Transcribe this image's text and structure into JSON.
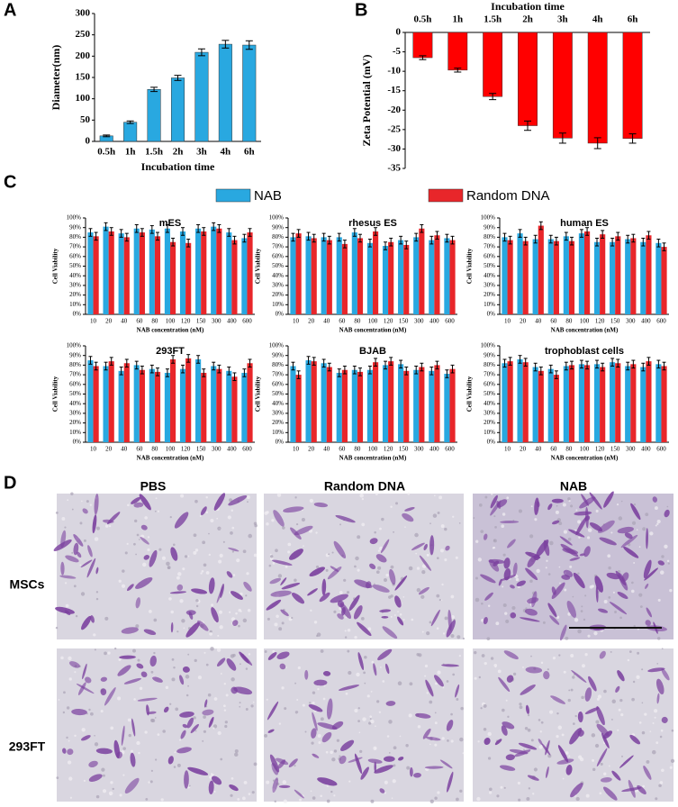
{
  "panel_labels": [
    "A",
    "B",
    "C",
    "D"
  ],
  "chart_data": [
    {
      "type": "bar",
      "categories": [
        "0.5h",
        "1h",
        "1.5h",
        "2h",
        "3h",
        "4h",
        "6h"
      ],
      "values": [
        13,
        45,
        122,
        149,
        209,
        228,
        226
      ],
      "errors": [
        2,
        3,
        5,
        6,
        8,
        9,
        10
      ],
      "color": "#29a8e0",
      "xlabel": "Incubation time",
      "ylabel": "Diameter(nm)",
      "ylim": [
        0,
        300
      ],
      "yticks": [
        0,
        50,
        100,
        150,
        200,
        250,
        300
      ],
      "xaxis": "bottom"
    },
    {
      "type": "bar",
      "categories": [
        "0.5h",
        "1h",
        "1.5h",
        "2h",
        "3h",
        "4h",
        "6h"
      ],
      "values": [
        -6.5,
        -9.7,
        -16.5,
        -24,
        -27.2,
        -28.5,
        -27.3
      ],
      "errors": [
        0.5,
        0.5,
        0.8,
        1.2,
        1.3,
        1.4,
        1.2
      ],
      "color": "#ff0000",
      "xlabel": "Incubation time",
      "ylabel": "Zeta Potential (mV)",
      "ylim": [
        -35,
        0
      ],
      "yticks": [
        0,
        -5,
        -10,
        -15,
        -20,
        -25,
        -30,
        -35
      ],
      "xaxis": "top"
    },
    {
      "type": "bar",
      "title": "mES",
      "categories": [
        "10",
        "20",
        "40",
        "60",
        "80",
        "100",
        "120",
        "150",
        "300",
        "400",
        "600"
      ],
      "series": [
        {
          "name": "NAB",
          "color": "#29a8e0",
          "values": [
            85,
            91,
            84,
            89,
            88,
            89,
            86,
            89,
            91,
            85,
            79
          ]
        },
        {
          "name": "Random DNA",
          "color": "#e8262a",
          "values": [
            81,
            86,
            80,
            85,
            81,
            75,
            74,
            86,
            89,
            77,
            85
          ]
        }
      ],
      "error": 4,
      "xlabel": "NAB concentration (nM)",
      "ylabel": "Cell Viability",
      "ylim": [
        0,
        100
      ],
      "yticks": [
        {
          "value": 0,
          "label": "0%"
        },
        {
          "value": 10,
          "label": "10%"
        },
        {
          "value": 20,
          "label": "20%"
        },
        {
          "value": 30,
          "label": "30%"
        },
        {
          "value": 40,
          "label": "40%"
        },
        {
          "value": 50,
          "label": "50%"
        },
        {
          "value": 60,
          "label": "60%"
        },
        {
          "value": 70,
          "label": "70%"
        },
        {
          "value": 80,
          "label": "80%"
        },
        {
          "value": 90,
          "label": "90%"
        },
        {
          "value": 100,
          "label": "100%"
        }
      ],
      "xaxis": "bottom"
    },
    {
      "type": "bar",
      "title": "rhesus ES",
      "categories": [
        "10",
        "20",
        "40",
        "60",
        "80",
        "100",
        "120",
        "150",
        "300",
        "400",
        "600"
      ],
      "series": [
        {
          "color": "#29a8e0",
          "values": [
            80,
            81,
            80,
            80,
            85,
            74,
            71,
            77,
            80,
            77,
            79
          ]
        },
        {
          "color": "#e8262a",
          "values": [
            84,
            79,
            77,
            73,
            79,
            86,
            75,
            72,
            89,
            82,
            77
          ]
        }
      ],
      "error": 4,
      "xlabel": "NAB concentration (nM)",
      "ylabel": "Cell Viability",
      "ylim": [
        0,
        100
      ],
      "yticks": [
        {
          "value": 0,
          "label": "0%"
        },
        {
          "value": 10,
          "label": "10%"
        },
        {
          "value": 20,
          "label": "20%"
        },
        {
          "value": 30,
          "label": "30%"
        },
        {
          "value": 40,
          "label": "40%"
        },
        {
          "value": 50,
          "label": "50%"
        },
        {
          "value": 60,
          "label": "60%"
        },
        {
          "value": 70,
          "label": "70%"
        },
        {
          "value": 80,
          "label": "80%"
        },
        {
          "value": 90,
          "label": "90%"
        },
        {
          "value": 100,
          "label": "100%"
        }
      ],
      "xaxis": "bottom"
    },
    {
      "type": "bar",
      "title": "human ES",
      "categories": [
        "10",
        "20",
        "40",
        "60",
        "80",
        "100",
        "120",
        "150",
        "300",
        "400",
        "600"
      ],
      "series": [
        {
          "color": "#29a8e0",
          "values": [
            80,
            84,
            78,
            78,
            81,
            84,
            75,
            75,
            78,
            75,
            74
          ]
        },
        {
          "color": "#e8262a",
          "values": [
            77,
            76,
            92,
            76,
            76,
            86,
            83,
            81,
            79,
            82,
            70
          ]
        }
      ],
      "error": 4,
      "xlabel": "NAB concentration (nM)",
      "ylabel": "Cell Viability",
      "ylim": [
        0,
        100
      ],
      "yticks": [
        {
          "value": 0,
          "label": "0%"
        },
        {
          "value": 10,
          "label": "10%"
        },
        {
          "value": 20,
          "label": "20%"
        },
        {
          "value": 30,
          "label": "30%"
        },
        {
          "value": 40,
          "label": "40%"
        },
        {
          "value": 50,
          "label": "50%"
        },
        {
          "value": 60,
          "label": "60%"
        },
        {
          "value": 70,
          "label": "70%"
        },
        {
          "value": 80,
          "label": "80%"
        },
        {
          "value": 90,
          "label": "90%"
        },
        {
          "value": 100,
          "label": "100%"
        }
      ],
      "xaxis": "bottom"
    },
    {
      "type": "bar",
      "title": "293FT",
      "categories": [
        "10",
        "20",
        "40",
        "60",
        "80",
        "100",
        "120",
        "150",
        "300",
        "400",
        "600"
      ],
      "series": [
        {
          "color": "#29a8e0",
          "values": [
            85,
            79,
            74,
            80,
            76,
            72,
            76,
            86,
            79,
            74,
            72
          ]
        },
        {
          "color": "#e8262a",
          "values": [
            79,
            84,
            82,
            75,
            73,
            86,
            87,
            72,
            76,
            68,
            82
          ]
        }
      ],
      "error": 4,
      "xlabel": "NAB concentration (nM)",
      "ylabel": "Cell Viability",
      "ylim": [
        0,
        100
      ],
      "yticks": [
        {
          "value": 0,
          "label": "0%"
        },
        {
          "value": 10,
          "label": "10%"
        },
        {
          "value": 20,
          "label": "20%"
        },
        {
          "value": 30,
          "label": "30%"
        },
        {
          "value": 40,
          "label": "40%"
        },
        {
          "value": 50,
          "label": "50%"
        },
        {
          "value": 60,
          "label": "60%"
        },
        {
          "value": 70,
          "label": "70%"
        },
        {
          "value": 80,
          "label": "80%"
        },
        {
          "value": 90,
          "label": "90%"
        },
        {
          "value": 100,
          "label": "100%"
        }
      ],
      "xaxis": "bottom"
    },
    {
      "type": "bar",
      "title": "BJAB",
      "categories": [
        "10",
        "20",
        "40",
        "60",
        "80",
        "100",
        "120",
        "150",
        "300",
        "400",
        "600"
      ],
      "series": [
        {
          "color": "#29a8e0",
          "values": [
            79,
            85,
            82,
            72,
            75,
            75,
            80,
            81,
            75,
            74,
            71
          ]
        },
        {
          "color": "#e8262a",
          "values": [
            70,
            84,
            78,
            75,
            73,
            83,
            84,
            74,
            78,
            80,
            76
          ]
        }
      ],
      "error": 4,
      "xlabel": "NAB concentration (nM)",
      "ylabel": "Cell Viability",
      "ylim": [
        0,
        100
      ],
      "yticks": [
        {
          "value": 0,
          "label": "0%"
        },
        {
          "value": 10,
          "label": "10%"
        },
        {
          "value": 20,
          "label": "20%"
        },
        {
          "value": 30,
          "label": "30%"
        },
        {
          "value": 40,
          "label": "40%"
        },
        {
          "value": 50,
          "label": "50%"
        },
        {
          "value": 60,
          "label": "60%"
        },
        {
          "value": 70,
          "label": "70%"
        },
        {
          "value": 80,
          "label": "80%"
        },
        {
          "value": 90,
          "label": "90%"
        },
        {
          "value": 100,
          "label": "100%"
        }
      ],
      "xaxis": "bottom"
    },
    {
      "type": "bar",
      "title": "trophoblast cells",
      "categories": [
        "10",
        "20",
        "40",
        "60",
        "80",
        "100",
        "120",
        "150",
        "300",
        "400",
        "600"
      ],
      "series": [
        {
          "color": "#29a8e0",
          "values": [
            82,
            86,
            78,
            76,
            79,
            81,
            81,
            83,
            79,
            78,
            81
          ]
        },
        {
          "color": "#e8262a",
          "values": [
            84,
            83,
            74,
            70,
            80,
            80,
            78,
            82,
            81,
            84,
            79
          ]
        }
      ],
      "error": 4,
      "xlabel": "NAB concentration (nM)",
      "ylabel": "Cell Viability",
      "ylim": [
        0,
        100
      ],
      "yticks": [
        {
          "value": 0,
          "label": "0%"
        },
        {
          "value": 10,
          "label": "10%"
        },
        {
          "value": 20,
          "label": "20%"
        },
        {
          "value": 30,
          "label": "30%"
        },
        {
          "value": 40,
          "label": "40%"
        },
        {
          "value": 50,
          "label": "50%"
        },
        {
          "value": 60,
          "label": "60%"
        },
        {
          "value": 70,
          "label": "70%"
        },
        {
          "value": 80,
          "label": "80%"
        },
        {
          "value": 90,
          "label": "90%"
        },
        {
          "value": 100,
          "label": "100%"
        }
      ],
      "xaxis": "bottom"
    }
  ],
  "micrographs": {
    "columns": [
      "PBS",
      "Random DNA",
      "NAB"
    ],
    "rows": [
      "MSCs",
      "293FT"
    ]
  }
}
